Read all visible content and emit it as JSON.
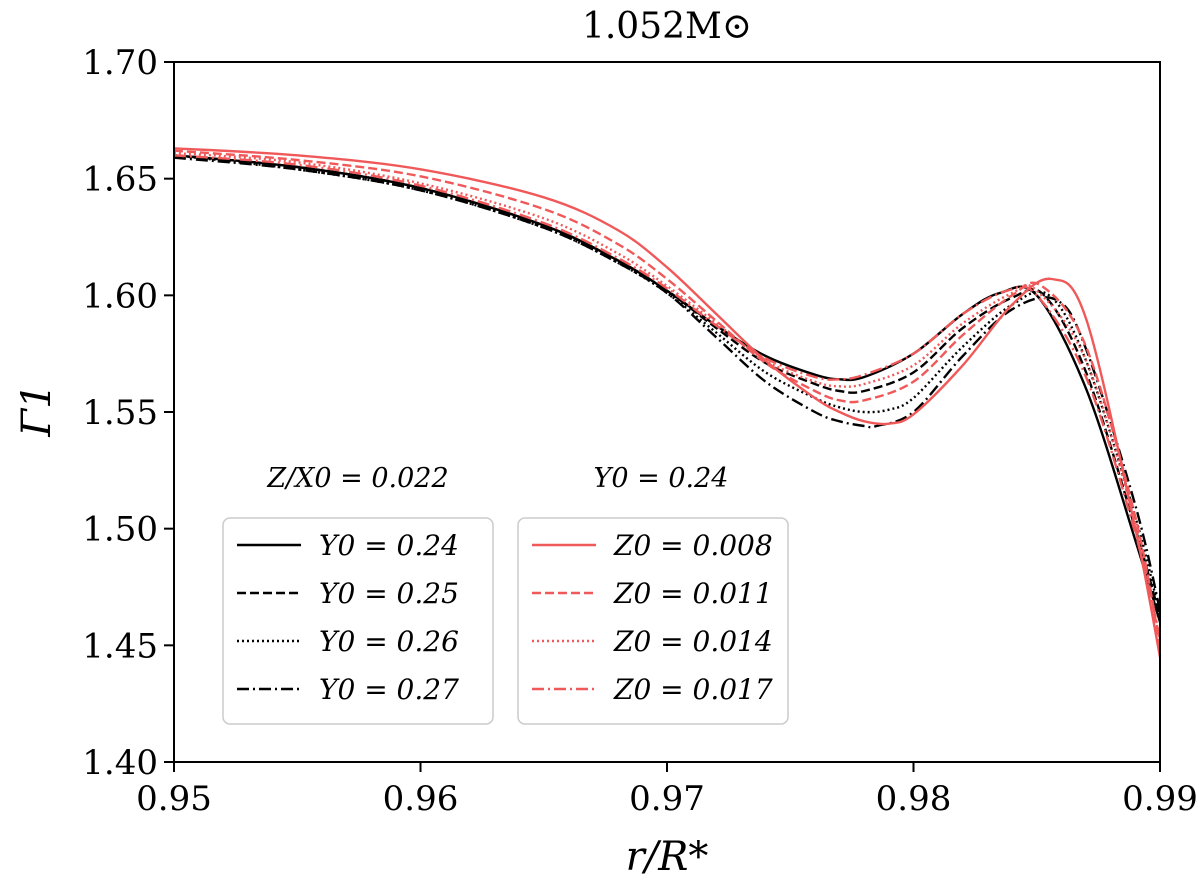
{
  "chart_data": {
    "type": "line",
    "title": "1.052M⊙",
    "xlabel": "r/R*",
    "ylabel": "Γ1",
    "xlim": [
      0.95,
      0.99
    ],
    "ylim": [
      1.4,
      1.7
    ],
    "xticks": [
      "0.95",
      "0.96",
      "0.97",
      "0.98",
      "0.99"
    ],
    "yticks": [
      "1.40",
      "1.45",
      "1.50",
      "1.55",
      "1.60",
      "1.65",
      "1.70"
    ],
    "grid": false,
    "legends": [
      {
        "title": "Z/X0 = 0.022",
        "position": "lower-left",
        "entries": [
          "Y0 = 0.24",
          "Y0 = 0.25",
          "Y0 = 0.26",
          "Y0 = 0.27"
        ]
      },
      {
        "title": "Y0 = 0.24",
        "position": "lower-center",
        "entries": [
          "Z0 = 0.008",
          "Z0 = 0.011",
          "Z0 = 0.014",
          "Z0 = 0.017"
        ]
      }
    ],
    "series": [
      {
        "name": "Y0 = 0.24",
        "color": "#000000",
        "dash": "solid",
        "x": [
          0.95,
          0.955,
          0.96,
          0.965,
          0.968,
          0.97,
          0.972,
          0.974,
          0.976,
          0.977,
          0.978,
          0.98,
          0.982,
          0.9835,
          0.985,
          0.987,
          0.989,
          0.99
        ],
        "y": [
          1.66,
          1.655,
          1.646,
          1.63,
          1.615,
          1.602,
          1.587,
          1.574,
          1.566,
          1.564,
          1.565,
          1.575,
          1.592,
          1.601,
          1.6,
          1.56,
          1.495,
          1.46
        ]
      },
      {
        "name": "Y0 = 0.25",
        "color": "#000000",
        "dash": "dashed",
        "x": [
          0.95,
          0.955,
          0.96,
          0.965,
          0.968,
          0.97,
          0.972,
          0.974,
          0.976,
          0.977,
          0.978,
          0.98,
          0.982,
          0.984,
          0.9853,
          0.987,
          0.989,
          0.99
        ],
        "y": [
          1.66,
          1.655,
          1.646,
          1.63,
          1.615,
          1.602,
          1.586,
          1.571,
          1.562,
          1.559,
          1.559,
          1.567,
          1.586,
          1.599,
          1.6,
          1.567,
          1.5,
          1.462
        ]
      },
      {
        "name": "Y0 = 0.26",
        "color": "#000000",
        "dash": "dotted",
        "x": [
          0.95,
          0.955,
          0.96,
          0.965,
          0.968,
          0.97,
          0.972,
          0.974,
          0.976,
          0.977,
          0.978,
          0.979,
          0.98,
          0.982,
          0.984,
          0.9855,
          0.987,
          0.989,
          0.99
        ],
        "y": [
          1.66,
          1.654,
          1.645,
          1.629,
          1.614,
          1.601,
          1.584,
          1.567,
          1.556,
          1.552,
          1.55,
          1.551,
          1.556,
          1.578,
          1.596,
          1.6,
          1.572,
          1.505,
          1.463
        ]
      },
      {
        "name": "Y0 = 0.27",
        "color": "#000000",
        "dash": "dashdot",
        "x": [
          0.95,
          0.955,
          0.96,
          0.965,
          0.968,
          0.97,
          0.972,
          0.974,
          0.976,
          0.977,
          0.978,
          0.9785,
          0.98,
          0.982,
          0.984,
          0.9858,
          0.987,
          0.989,
          0.99
        ],
        "y": [
          1.659,
          1.654,
          1.645,
          1.629,
          1.614,
          1.601,
          1.582,
          1.563,
          1.55,
          1.546,
          1.544,
          1.544,
          1.55,
          1.574,
          1.594,
          1.598,
          1.577,
          1.51,
          1.465
        ]
      },
      {
        "name": "Z0 = 0.008",
        "color": "#f0595a",
        "dash": "solid",
        "x": [
          0.95,
          0.955,
          0.96,
          0.965,
          0.968,
          0.97,
          0.972,
          0.974,
          0.976,
          0.977,
          0.978,
          0.979,
          0.98,
          0.982,
          0.984,
          0.9856,
          0.987,
          0.989,
          0.99
        ],
        "y": [
          1.663,
          1.66,
          1.654,
          1.642,
          1.628,
          1.612,
          1.592,
          1.572,
          1.556,
          1.55,
          1.546,
          1.545,
          1.549,
          1.57,
          1.596,
          1.607,
          1.59,
          1.5,
          1.445
        ]
      },
      {
        "name": "Z0 = 0.011",
        "color": "#f0595a",
        "dash": "dashed",
        "x": [
          0.95,
          0.955,
          0.96,
          0.965,
          0.968,
          0.97,
          0.972,
          0.974,
          0.976,
          0.977,
          0.978,
          0.98,
          0.982,
          0.984,
          0.9852,
          0.987,
          0.989,
          0.99
        ],
        "y": [
          1.662,
          1.658,
          1.651,
          1.637,
          1.622,
          1.607,
          1.589,
          1.571,
          1.559,
          1.555,
          1.555,
          1.563,
          1.583,
          1.6,
          1.604,
          1.578,
          1.505,
          1.45
        ]
      },
      {
        "name": "Z0 = 0.014",
        "color": "#f0595a",
        "dash": "dotted",
        "x": [
          0.95,
          0.955,
          0.96,
          0.965,
          0.968,
          0.97,
          0.972,
          0.974,
          0.976,
          0.977,
          0.978,
          0.98,
          0.982,
          0.984,
          0.985,
          0.987,
          0.989,
          0.99
        ],
        "y": [
          1.661,
          1.657,
          1.648,
          1.633,
          1.618,
          1.604,
          1.588,
          1.572,
          1.563,
          1.561,
          1.562,
          1.57,
          1.588,
          1.601,
          1.602,
          1.572,
          1.502,
          1.452
        ]
      },
      {
        "name": "Z0 = 0.017",
        "color": "#f0595a",
        "dash": "dashdot",
        "x": [
          0.95,
          0.955,
          0.96,
          0.965,
          0.968,
          0.97,
          0.972,
          0.974,
          0.976,
          0.977,
          0.978,
          0.98,
          0.982,
          0.9838,
          0.985,
          0.987,
          0.989,
          0.99
        ],
        "y": [
          1.66,
          1.656,
          1.647,
          1.631,
          1.616,
          1.603,
          1.587,
          1.573,
          1.565,
          1.564,
          1.566,
          1.575,
          1.592,
          1.602,
          1.6,
          1.565,
          1.498,
          1.453
        ]
      }
    ]
  }
}
